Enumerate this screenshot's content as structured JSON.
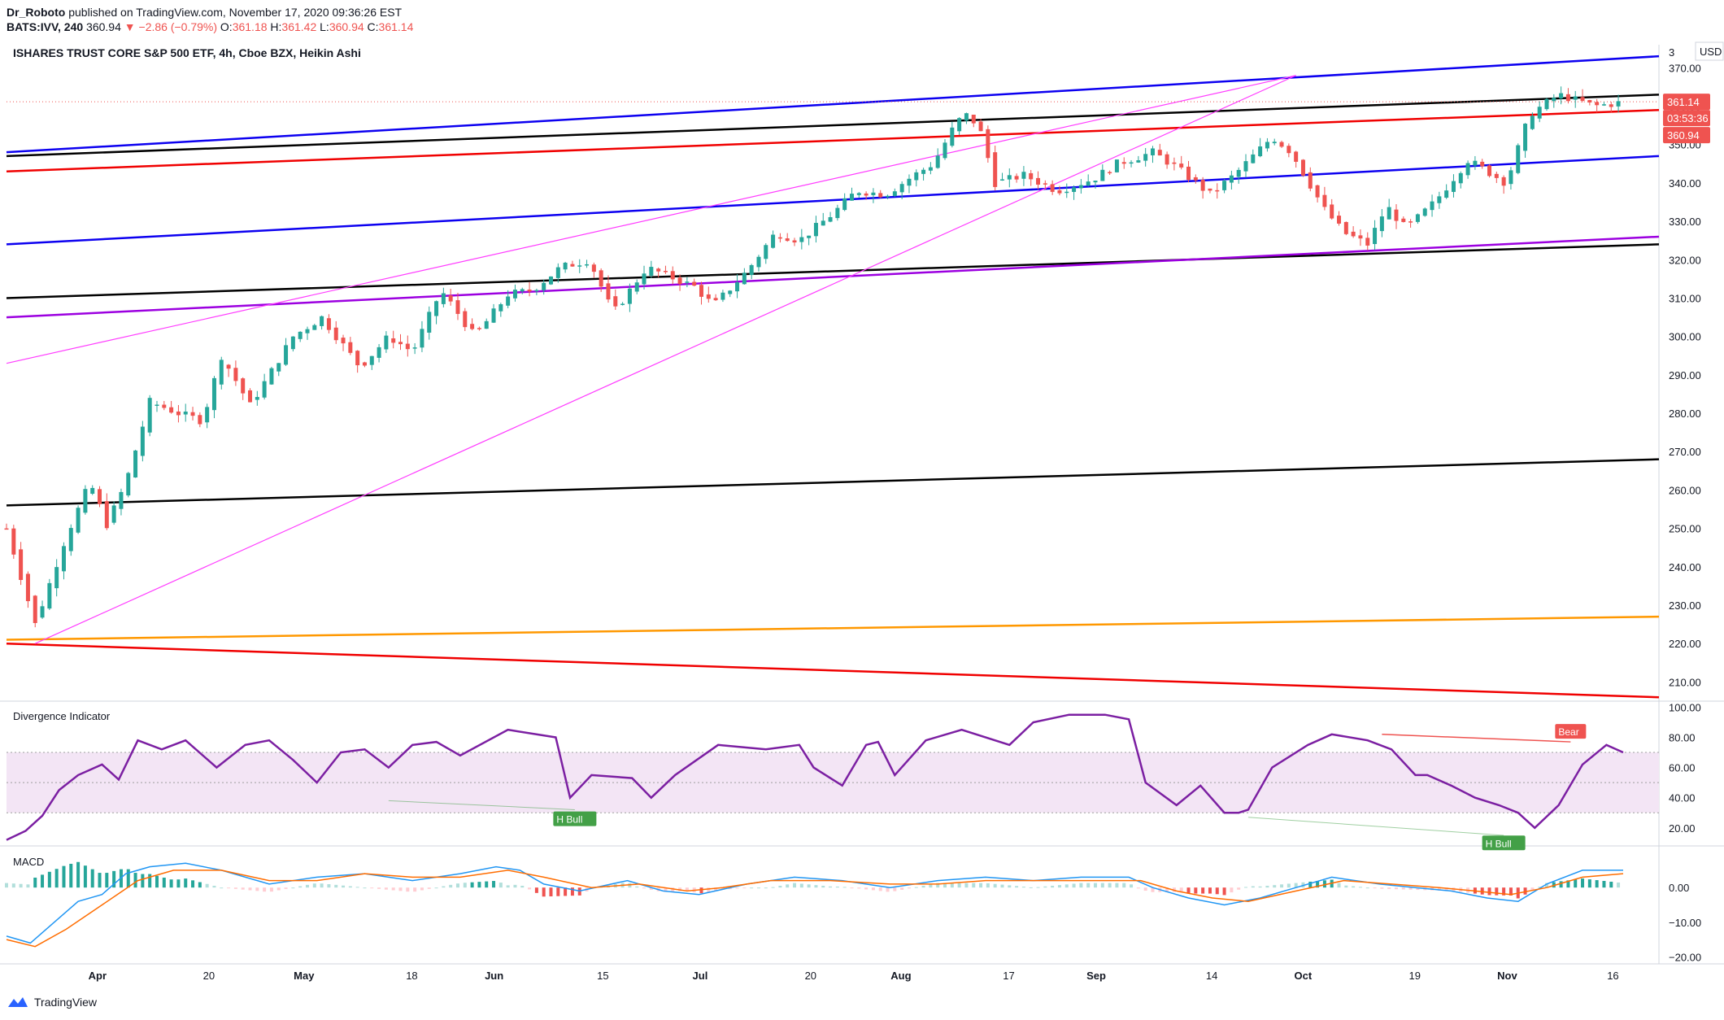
{
  "header": {
    "publisher": "Dr_Roboto",
    "published_text": "published on TradingView.com, November 17, 2020 09:36:26 EST",
    "symbol": "BATS:IVV, 240",
    "last": "360.94",
    "change": "▼ −2.86 (−0.79%)",
    "o_label": "O:",
    "o": "361.18",
    "h_label": "H:",
    "h": "361.42",
    "l_label": "L:",
    "l": "360.94",
    "c_label": "C:",
    "c": "361.14"
  },
  "footer": {
    "brand": "TradingView"
  },
  "colors": {
    "up": "#26a69a",
    "down": "#ef5350",
    "blue_line": "#0c00f0",
    "black_line": "#000000",
    "red_line": "#f00000",
    "purple_line": "#9c00e0",
    "magenta_line": "#ff3cff",
    "orange_line": "#ff9800",
    "rsi": "#7b1fa2",
    "macd": "#2196f3",
    "signal": "#ff6d00"
  },
  "chart_data": [
    {
      "type": "candlestick",
      "title": "ISHARES TRUST CORE S&P 500 ETF, 4h, Cboe BZX, Heikin Ashi",
      "currency": "USD",
      "y_ticks": [
        "370.00",
        "360.00",
        "350.00",
        "340.00",
        "330.00",
        "320.00",
        "310.00",
        "300.00",
        "290.00",
        "280.00",
        "270.00",
        "260.00",
        "250.00",
        "240.00",
        "230.00",
        "220.00",
        "210.00"
      ],
      "y_tick_top_partial": "3",
      "ylim": [
        205,
        376
      ],
      "price_labels": [
        {
          "text": "361.14",
          "color": "#ef5350"
        },
        {
          "text": "03:53:36",
          "color": "#ef5350"
        },
        {
          "text": "360.94",
          "color": "#ef5350"
        }
      ],
      "x_ticks": [
        "Apr",
        "20",
        "May",
        "18",
        "Jun",
        "15",
        "Jul",
        "20",
        "Aug",
        "17",
        "Sep",
        "14",
        "Oct",
        "19",
        "Nov",
        "16"
      ],
      "close_path": [
        [
          0,
          250
        ],
        [
          12,
          225
        ],
        [
          25,
          248
        ],
        [
          35,
          262
        ],
        [
          42,
          251
        ],
        [
          50,
          262
        ],
        [
          60,
          283
        ],
        [
          72,
          280
        ],
        [
          82,
          278
        ],
        [
          90,
          295
        ],
        [
          102,
          282
        ],
        [
          110,
          290
        ],
        [
          120,
          300
        ],
        [
          132,
          305
        ],
        [
          148,
          292
        ],
        [
          160,
          300
        ],
        [
          170,
          296
        ],
        [
          182,
          312
        ],
        [
          196,
          300
        ],
        [
          210,
          311
        ],
        [
          220,
          312
        ],
        [
          232,
          318
        ],
        [
          244,
          320
        ],
        [
          254,
          306
        ],
        [
          268,
          318
        ],
        [
          288,
          313
        ],
        [
          296,
          308
        ],
        [
          310,
          317
        ],
        [
          322,
          327
        ],
        [
          332,
          325
        ],
        [
          346,
          332
        ],
        [
          356,
          338
        ],
        [
          368,
          337
        ],
        [
          380,
          342
        ],
        [
          388,
          345
        ],
        [
          398,
          356
        ],
        [
          403,
          358
        ],
        [
          408,
          353
        ],
        [
          414,
          340
        ],
        [
          426,
          342
        ],
        [
          440,
          338
        ],
        [
          455,
          341
        ],
        [
          465,
          345
        ],
        [
          480,
          348
        ],
        [
          490,
          344
        ],
        [
          504,
          337
        ],
        [
          514,
          342
        ],
        [
          530,
          352
        ],
        [
          538,
          348
        ],
        [
          552,
          333
        ],
        [
          560,
          327
        ],
        [
          570,
          324
        ],
        [
          578,
          334
        ],
        [
          586,
          328
        ],
        [
          598,
          335
        ],
        [
          612,
          346
        ],
        [
          628,
          340
        ],
        [
          638,
          358
        ],
        [
          650,
          363
        ],
        [
          665,
          360
        ],
        [
          677,
          361
        ]
      ],
      "trend_lines": [
        {
          "color": "#0c00f0",
          "from": [
            0,
            348
          ],
          "to": [
            692,
            373
          ]
        },
        {
          "color": "#000000",
          "from": [
            0,
            347
          ],
          "to": [
            692,
            363
          ]
        },
        {
          "color": "#f00000",
          "from": [
            0,
            343
          ],
          "to": [
            692,
            359
          ]
        },
        {
          "color": "#0c00f0",
          "from": [
            0,
            324
          ],
          "to": [
            692,
            347
          ]
        },
        {
          "color": "#000000",
          "from": [
            0,
            310
          ],
          "to": [
            692,
            324
          ]
        },
        {
          "color": "#9c00e0",
          "from": [
            0,
            305
          ],
          "to": [
            692,
            326
          ]
        },
        {
          "color": "#000000",
          "from": [
            0,
            256
          ],
          "to": [
            692,
            268
          ]
        },
        {
          "color": "#ff9800",
          "from": [
            0,
            221
          ],
          "to": [
            692,
            227
          ]
        },
        {
          "color": "#f00000",
          "from": [
            0,
            220
          ],
          "to": [
            692,
            206
          ]
        },
        {
          "color": "#ff3cff",
          "from": [
            0,
            293
          ],
          "to": [
            540,
            368
          ]
        },
        {
          "color": "#ff3cff",
          "from": [
            12,
            220
          ],
          "to": [
            540,
            368
          ]
        }
      ],
      "last_price": 361.14
    },
    {
      "type": "line",
      "title": "Divergence Indicator",
      "y_ticks": [
        "100.00",
        "80.00",
        "60.00",
        "40.00",
        "20.00"
      ],
      "ylim": [
        8,
        104
      ],
      "band": [
        30,
        70
      ],
      "midline": 50,
      "series": [
        {
          "values": [
            [
              0,
              12
            ],
            [
              8,
              18
            ],
            [
              15,
              28
            ],
            [
              22,
              45
            ],
            [
              30,
              55
            ],
            [
              40,
              62
            ],
            [
              47,
              52
            ],
            [
              55,
              78
            ],
            [
              65,
              72
            ],
            [
              75,
              78
            ],
            [
              88,
              60
            ],
            [
              100,
              75
            ],
            [
              110,
              78
            ],
            [
              120,
              65
            ],
            [
              130,
              50
            ],
            [
              140,
              70
            ],
            [
              150,
              72
            ],
            [
              160,
              60
            ],
            [
              170,
              75
            ],
            [
              180,
              77
            ],
            [
              190,
              68
            ],
            [
              210,
              85
            ],
            [
              230,
              80
            ],
            [
              236,
              40
            ],
            [
              245,
              55
            ],
            [
              262,
              53
            ],
            [
              270,
              40
            ],
            [
              280,
              55
            ],
            [
              298,
              75
            ],
            [
              318,
              72
            ],
            [
              332,
              75
            ],
            [
              338,
              60
            ],
            [
              350,
              48
            ],
            [
              360,
              75
            ],
            [
              365,
              77
            ],
            [
              372,
              55
            ],
            [
              385,
              78
            ],
            [
              400,
              85
            ],
            [
              420,
              75
            ],
            [
              430,
              90
            ],
            [
              445,
              95
            ],
            [
              460,
              95
            ],
            [
              470,
              92
            ],
            [
              477,
              50
            ],
            [
              490,
              35
            ],
            [
              500,
              48
            ],
            [
              510,
              30
            ],
            [
              516,
              30
            ],
            [
              520,
              32
            ],
            [
              530,
              60
            ],
            [
              545,
              75
            ],
            [
              555,
              82
            ],
            [
              570,
              78
            ],
            [
              580,
              72
            ],
            [
              590,
              55
            ],
            [
              595,
              55
            ],
            [
              605,
              48
            ],
            [
              615,
              40
            ],
            [
              625,
              35
            ],
            [
              633,
              30
            ],
            [
              640,
              20
            ],
            [
              650,
              35
            ],
            [
              660,
              62
            ],
            [
              670,
              75
            ],
            [
              677,
              70
            ]
          ]
        }
      ],
      "divergences": [
        {
          "label": "H Bull",
          "color": "#43a047",
          "from": [
            160,
            38
          ],
          "to": [
            238,
            32
          ],
          "tag_at": [
            238,
            26
          ]
        },
        {
          "label": "H Bull",
          "color": "#43a047",
          "from": [
            520,
            27
          ],
          "to": [
            627,
            15
          ],
          "tag_at": [
            627,
            10
          ]
        },
        {
          "label": "Bear",
          "color": "#ef5350",
          "from": [
            576,
            82
          ],
          "to": [
            655,
            77
          ],
          "tag_at": [
            655,
            84
          ]
        }
      ]
    },
    {
      "type": "bar",
      "title": "MACD",
      "y_ticks": [
        "0.00",
        "−10.00",
        "−20.00"
      ],
      "ylim": [
        -22,
        12
      ],
      "series": [
        {
          "name": "",
          "color": "#2196f3",
          "values": [
            [
              0,
              -14
            ],
            [
              10,
              -16
            ],
            [
              20,
              -10
            ],
            [
              30,
              -4
            ],
            [
              40,
              -2
            ],
            [
              50,
              4
            ],
            [
              60,
              6
            ],
            [
              75,
              7
            ],
            [
              90,
              5
            ],
            [
              110,
              1
            ],
            [
              130,
              3
            ],
            [
              150,
              4
            ],
            [
              170,
              2
            ],
            [
              190,
              4
            ],
            [
              205,
              6
            ],
            [
              215,
              5
            ],
            [
              225,
              1
            ],
            [
              240,
              -1
            ],
            [
              260,
              2
            ],
            [
              275,
              -1
            ],
            [
              290,
              -2
            ],
            [
              310,
              1
            ],
            [
              330,
              3
            ],
            [
              350,
              2
            ],
            [
              370,
              0
            ],
            [
              390,
              2
            ],
            [
              410,
              3
            ],
            [
              430,
              2
            ],
            [
              450,
              3
            ],
            [
              470,
              3
            ],
            [
              480,
              0
            ],
            [
              495,
              -3
            ],
            [
              510,
              -5
            ],
            [
              525,
              -3
            ],
            [
              540,
              0
            ],
            [
              555,
              3
            ],
            [
              575,
              1
            ],
            [
              590,
              0
            ],
            [
              605,
              -1
            ],
            [
              620,
              -3
            ],
            [
              633,
              -4
            ],
            [
              645,
              1
            ],
            [
              660,
              5
            ],
            [
              677,
              5
            ]
          ]
        },
        {
          "name": "",
          "color": "#ff6d00",
          "values": [
            [
              0,
              -15
            ],
            [
              12,
              -17
            ],
            [
              25,
              -12
            ],
            [
              40,
              -5
            ],
            [
              55,
              2
            ],
            [
              70,
              5
            ],
            [
              90,
              5
            ],
            [
              110,
              2
            ],
            [
              130,
              2
            ],
            [
              150,
              4
            ],
            [
              170,
              3
            ],
            [
              190,
              3
            ],
            [
              210,
              5
            ],
            [
              225,
              3
            ],
            [
              245,
              0
            ],
            [
              265,
              1
            ],
            [
              285,
              -1
            ],
            [
              300,
              0
            ],
            [
              320,
              2
            ],
            [
              345,
              2
            ],
            [
              370,
              1
            ],
            [
              390,
              1
            ],
            [
              410,
              2
            ],
            [
              435,
              2
            ],
            [
              455,
              2
            ],
            [
              475,
              2
            ],
            [
              490,
              -1
            ],
            [
              505,
              -3
            ],
            [
              520,
              -4
            ],
            [
              540,
              -1
            ],
            [
              560,
              2
            ],
            [
              580,
              1
            ],
            [
              600,
              0
            ],
            [
              615,
              -1
            ],
            [
              630,
              -2
            ],
            [
              645,
              0
            ],
            [
              660,
              3
            ],
            [
              677,
              4
            ]
          ]
        }
      ]
    }
  ]
}
